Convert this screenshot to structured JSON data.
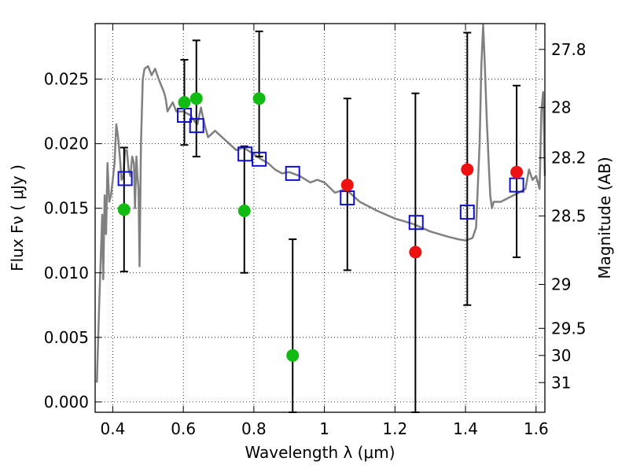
{
  "chart_data": {
    "type": "scatter",
    "xlabel": "Wavelength  λ (μm)",
    "ylabel": "Flux  Fν  ( μJy )",
    "ylabel_right": "Magnitude (AB)",
    "xlim": [
      0.35,
      1.625
    ],
    "ylim": [
      -0.0008,
      0.0293
    ],
    "x_ticks": [
      0.4,
      0.6,
      0.8,
      1.0,
      1.2,
      1.4,
      1.6
    ],
    "x_tick_labels": [
      "0.4",
      "0.6",
      "0.8",
      "1",
      "1.2",
      "1.4",
      "1.6"
    ],
    "y_ticks": [
      0.0,
      0.005,
      0.01,
      0.015,
      0.02,
      0.025
    ],
    "y_tick_labels": [
      "0.000",
      "0.005",
      "0.010",
      "0.015",
      "0.020",
      "0.025"
    ],
    "right_ticks": [
      {
        "label": "27.8",
        "flux": 0.0273
      },
      {
        "label": "28",
        "flux": 0.0228
      },
      {
        "label": "28.2",
        "flux": 0.0189
      },
      {
        "label": "28.5",
        "flux": 0.0144
      },
      {
        "label": "29",
        "flux": 0.0091
      },
      {
        "label": "29.5",
        "flux": 0.0057
      },
      {
        "label": "30",
        "flux": 0.0036
      },
      {
        "label": "31",
        "flux": 0.0015
      }
    ],
    "grid": true,
    "colors": {
      "model": "#808080",
      "green_points": "#11bb11",
      "red_points": "#ee1111",
      "model_boxes": "#1010cc",
      "error_bars": "#000000"
    },
    "series": [
      {
        "kind": "model_spectrum",
        "x": [
          0.355,
          0.362,
          0.37,
          0.373,
          0.377,
          0.381,
          0.385,
          0.39,
          0.395,
          0.4,
          0.405,
          0.41,
          0.415,
          0.42,
          0.425,
          0.43,
          0.435,
          0.44,
          0.445,
          0.45,
          0.455,
          0.46,
          0.463,
          0.467,
          0.47,
          0.473,
          0.476,
          0.48,
          0.485,
          0.49,
          0.5,
          0.51,
          0.52,
          0.53,
          0.545,
          0.55,
          0.555,
          0.57,
          0.58,
          0.6,
          0.62,
          0.63,
          0.64,
          0.65,
          0.66,
          0.67,
          0.69,
          0.71,
          0.73,
          0.75,
          0.77,
          0.8,
          0.82,
          0.84,
          0.86,
          0.88,
          0.9,
          0.93,
          0.96,
          0.98,
          1.0,
          1.03,
          1.06,
          1.1,
          1.15,
          1.2,
          1.25,
          1.3,
          1.35,
          1.38,
          1.4,
          1.42,
          1.43,
          1.44,
          1.445,
          1.45,
          1.455,
          1.46,
          1.465,
          1.47,
          1.475,
          1.48,
          1.5,
          1.55,
          1.57,
          1.58,
          1.59,
          1.6,
          1.61,
          1.615,
          1.62,
          1.625
        ],
        "y": [
          0.0015,
          0.008,
          0.0145,
          0.0095,
          0.016,
          0.013,
          0.0185,
          0.0155,
          0.016,
          0.0172,
          0.0185,
          0.0215,
          0.0205,
          0.019,
          0.0172,
          0.0175,
          0.0195,
          0.0195,
          0.018,
          0.0175,
          0.019,
          0.0185,
          0.015,
          0.019,
          0.0175,
          0.0165,
          0.0105,
          0.02,
          0.025,
          0.0258,
          0.026,
          0.0253,
          0.0258,
          0.025,
          0.024,
          0.0235,
          0.0225,
          0.0232,
          0.0225,
          0.0225,
          0.0222,
          0.0218,
          0.0215,
          0.0228,
          0.0215,
          0.0205,
          0.021,
          0.0205,
          0.02,
          0.0195,
          0.0197,
          0.0192,
          0.0188,
          0.0185,
          0.018,
          0.0177,
          0.0178,
          0.0175,
          0.017,
          0.0172,
          0.017,
          0.0162,
          0.0165,
          0.0155,
          0.0148,
          0.0142,
          0.0138,
          0.0132,
          0.0128,
          0.0126,
          0.0125,
          0.0127,
          0.0135,
          0.02,
          0.026,
          0.0292,
          0.026,
          0.022,
          0.019,
          0.016,
          0.015,
          0.0155,
          0.0155,
          0.0162,
          0.0165,
          0.018,
          0.0172,
          0.0175,
          0.0165,
          0.0225,
          0.024,
          0.0175
        ]
      },
      {
        "kind": "model_magnitudes",
        "x": [
          0.435,
          0.603,
          0.638,
          0.775,
          0.815,
          0.91,
          1.065,
          1.26,
          1.405,
          1.545
        ],
        "y": [
          0.0173,
          0.0222,
          0.0214,
          0.0192,
          0.0188,
          0.0177,
          0.0158,
          0.0139,
          0.0147,
          0.0168
        ]
      },
      {
        "kind": "observed_photometry",
        "points": [
          {
            "x": 0.432,
            "y": 0.0149,
            "err_lo": 0.0101,
            "err_hi": 0.0197,
            "color": "green"
          },
          {
            "x": 0.603,
            "y": 0.0232,
            "err_lo": 0.0199,
            "err_hi": 0.0265,
            "color": "green"
          },
          {
            "x": 0.637,
            "y": 0.0235,
            "err_lo": 0.019,
            "err_hi": 0.028,
            "color": "green"
          },
          {
            "x": 0.773,
            "y": 0.0148,
            "err_lo": 0.01,
            "err_hi": 0.0198,
            "color": "green"
          },
          {
            "x": 0.815,
            "y": 0.0235,
            "err_lo": 0.019,
            "err_hi": 0.0287,
            "color": "green"
          },
          {
            "x": 0.91,
            "y": 0.0036,
            "err_lo": -0.0008,
            "err_hi": 0.0126,
            "color": "green"
          },
          {
            "x": 1.065,
            "y": 0.0168,
            "err_lo": 0.0102,
            "err_hi": 0.0235,
            "color": "red"
          },
          {
            "x": 1.258,
            "y": 0.0116,
            "err_lo": -0.0008,
            "err_hi": 0.0239,
            "color": "red"
          },
          {
            "x": 1.405,
            "y": 0.018,
            "err_lo": 0.0075,
            "err_hi": 0.0286,
            "color": "red"
          },
          {
            "x": 1.545,
            "y": 0.0178,
            "err_lo": 0.0112,
            "err_hi": 0.0245,
            "color": "red"
          }
        ]
      }
    ]
  }
}
